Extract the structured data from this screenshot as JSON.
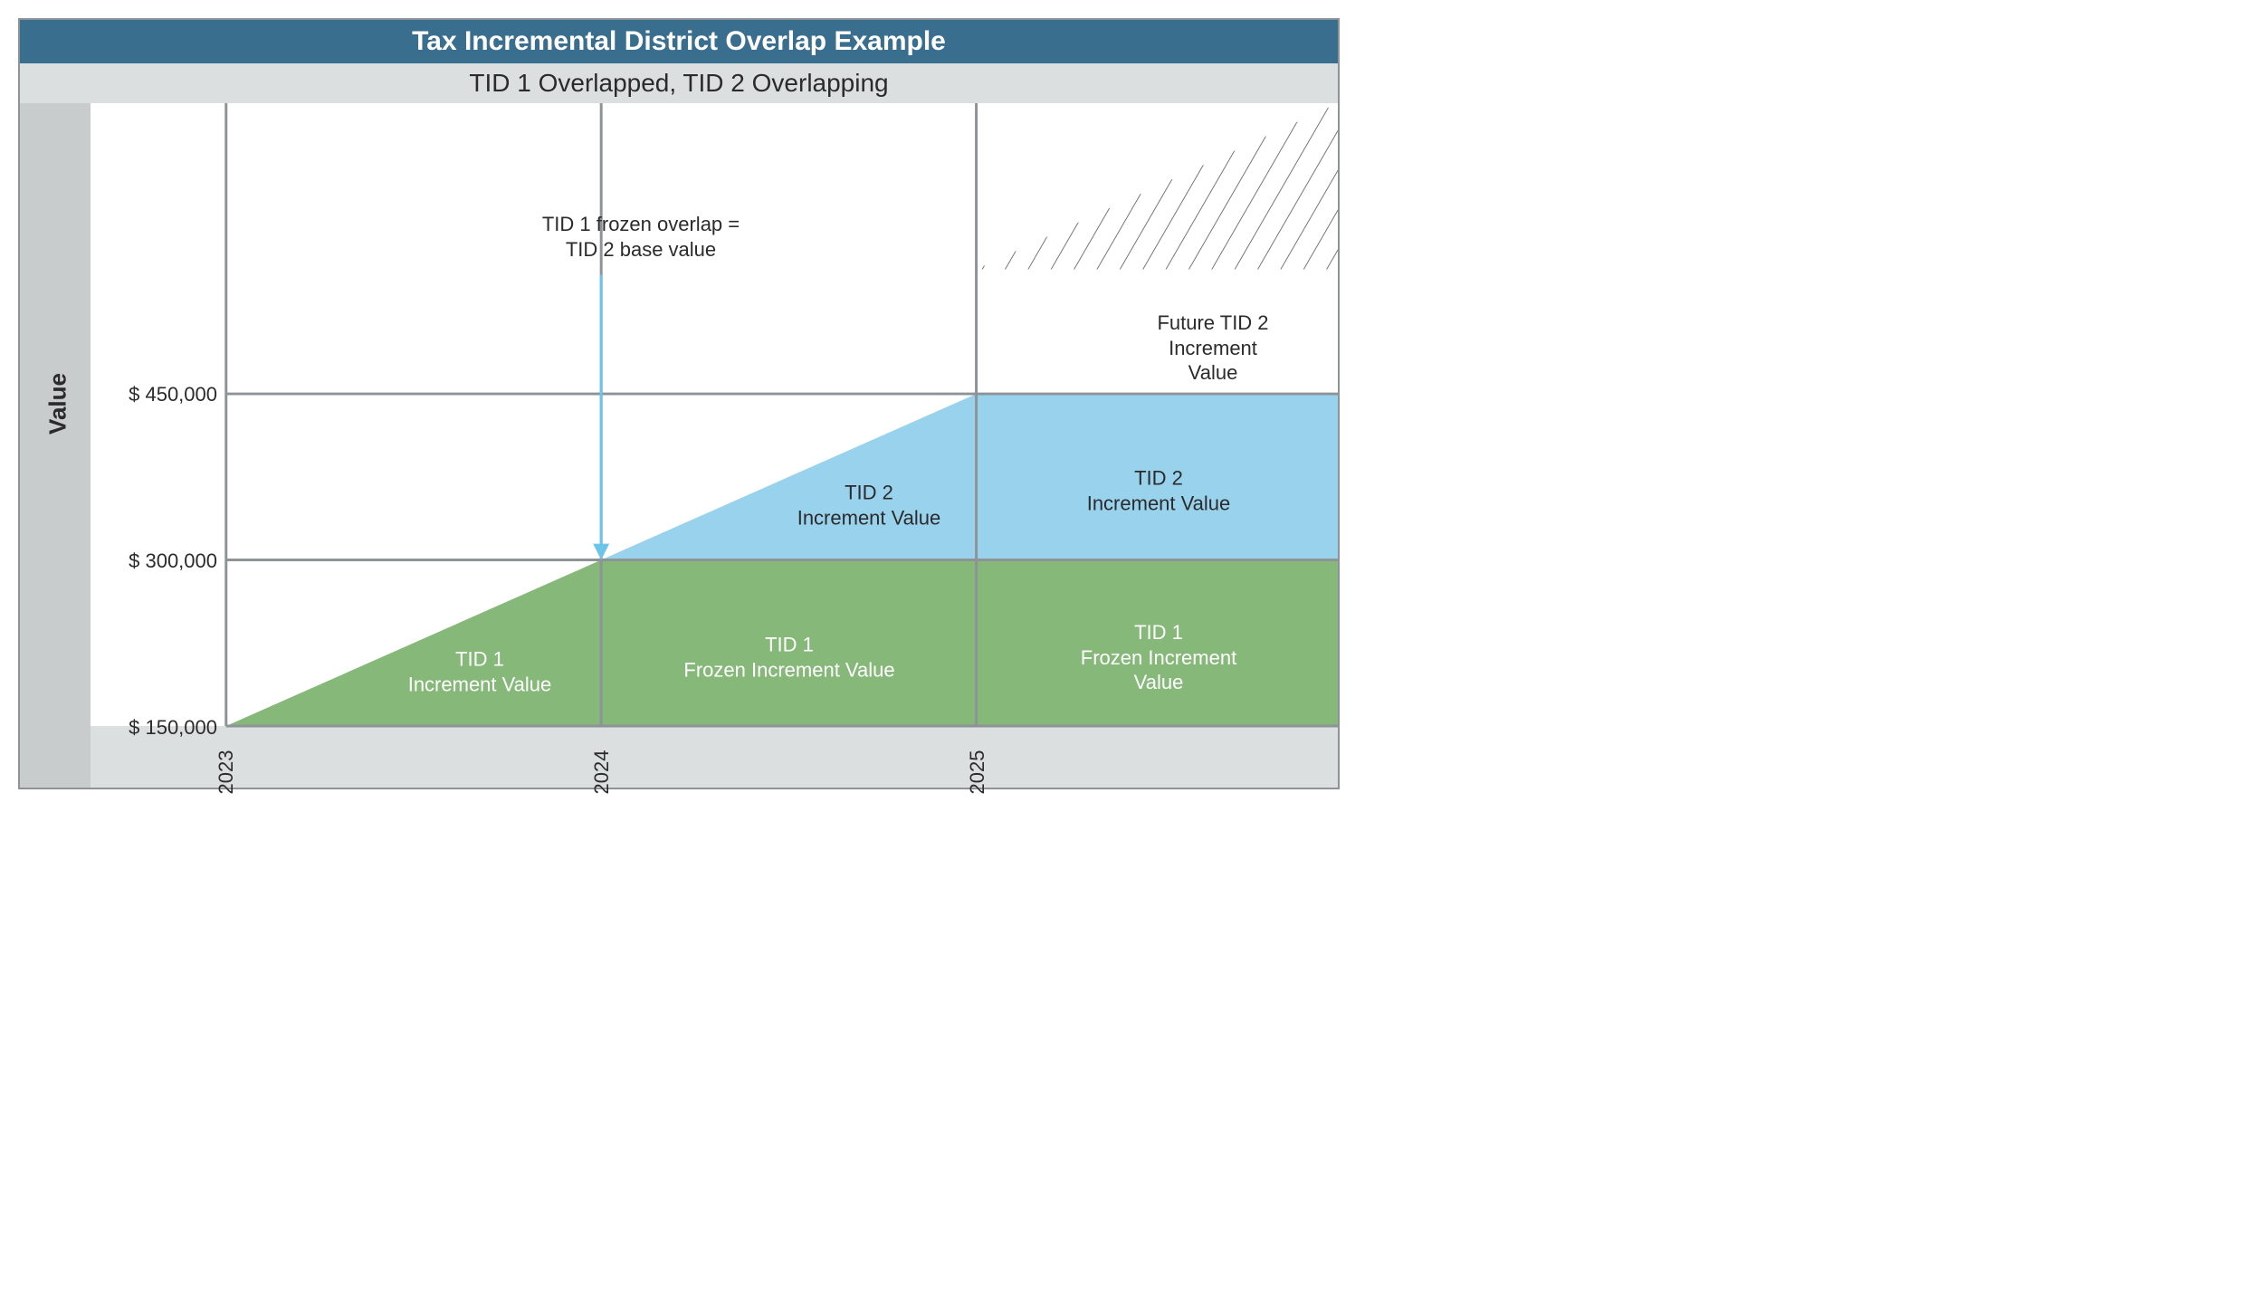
{
  "chart": {
    "type": "area",
    "title": "Tax Incremental District Overlap Example",
    "subtitle": "TID 1 Overlapped, TID 2 Overlapping",
    "background_color": "#ffffff",
    "title_bg": "#3a6e8f",
    "title_color": "#ffffff",
    "subtitle_bg": "#dcdfe0",
    "subtitle_color": "#2b2b2b",
    "grid_color": "#8e9398",
    "y_axis": {
      "label": "Value",
      "ticks": [
        "$ 150,000",
        "$ 300,000",
        "$ 450,000"
      ],
      "tick_values": [
        150000,
        300000,
        450000
      ],
      "ylim": [
        150000,
        600000
      ],
      "label_fontsize": 26,
      "tick_fontsize": 22,
      "bg_color": "#c8cccd"
    },
    "x_axis": {
      "ticks": [
        "2023",
        "2024",
        "2025"
      ],
      "tick_positions": [
        0,
        1,
        2
      ],
      "xlim": [
        0,
        3
      ],
      "tick_fontsize": 22,
      "bg_color": "#dcdfe0"
    },
    "regions": [
      {
        "name": "tid1-increment-triangle",
        "shape": "triangle",
        "points_xy": [
          [
            0,
            150000
          ],
          [
            1,
            150000
          ],
          [
            1,
            300000
          ]
        ],
        "fill": "#86b879",
        "label": "TID 1\nIncrement Value",
        "label_color": "#ffffff",
        "label_pos_xy": [
          0.72,
          200000
        ]
      },
      {
        "name": "tid1-frozen-2024",
        "shape": "rect",
        "points_xy": [
          [
            1,
            150000
          ],
          [
            2,
            150000
          ],
          [
            2,
            300000
          ],
          [
            1,
            300000
          ]
        ],
        "fill": "#86b879",
        "label": "TID 1\nFrozen Increment Value",
        "label_color": "#ffffff",
        "label_pos_xy": [
          1.5,
          212000
        ]
      },
      {
        "name": "tid1-frozen-2025",
        "shape": "rect",
        "points_xy": [
          [
            2,
            150000
          ],
          [
            3,
            150000
          ],
          [
            3,
            300000
          ],
          [
            2,
            300000
          ]
        ],
        "fill": "#86b879",
        "label": "TID 1\nFrozen Increment Value",
        "label_color": "#ffffff",
        "label_pos_xy": [
          2.5,
          212000
        ]
      },
      {
        "name": "tid2-increment-triangle",
        "shape": "triangle",
        "points_xy": [
          [
            1,
            300000
          ],
          [
            2,
            300000
          ],
          [
            2,
            450000
          ]
        ],
        "fill": "#99d2ed",
        "label": "TID 2\nIncrement Value",
        "label_color": "#2b2b2b",
        "label_pos_xy": [
          1.72,
          350000
        ]
      },
      {
        "name": "tid2-increment-2025",
        "shape": "rect",
        "points_xy": [
          [
            2,
            300000
          ],
          [
            3,
            300000
          ],
          [
            3,
            450000
          ],
          [
            2,
            450000
          ]
        ],
        "fill": "#99d2ed",
        "label": "TID 2\nIncrement Value",
        "label_color": "#2b2b2b",
        "label_pos_xy": [
          2.5,
          362000
        ]
      },
      {
        "name": "future-tid2-hatch",
        "shape": "triangle",
        "points_xy": [
          [
            2,
            450000
          ],
          [
            3,
            450000
          ],
          [
            3,
            600000
          ]
        ],
        "fill": "hatch",
        "hatch_stroke": "#4a4a4a",
        "label": "Future TID 2\nIncrement Value",
        "label_color": "#2b2b2b",
        "label_pos_xy": [
          2.62,
          505000
        ]
      }
    ],
    "callout": {
      "text": "TID 1 frozen overlap =\nTID 2 base value",
      "anchor_xy": [
        1,
        300000
      ],
      "label_pos_xy": [
        1.06,
        525000
      ],
      "arrow_color": "#6cc5e9"
    },
    "gridlines_y": [
      150000,
      300000,
      450000
    ],
    "gridlines_x": [
      0,
      1,
      2
    ]
  }
}
